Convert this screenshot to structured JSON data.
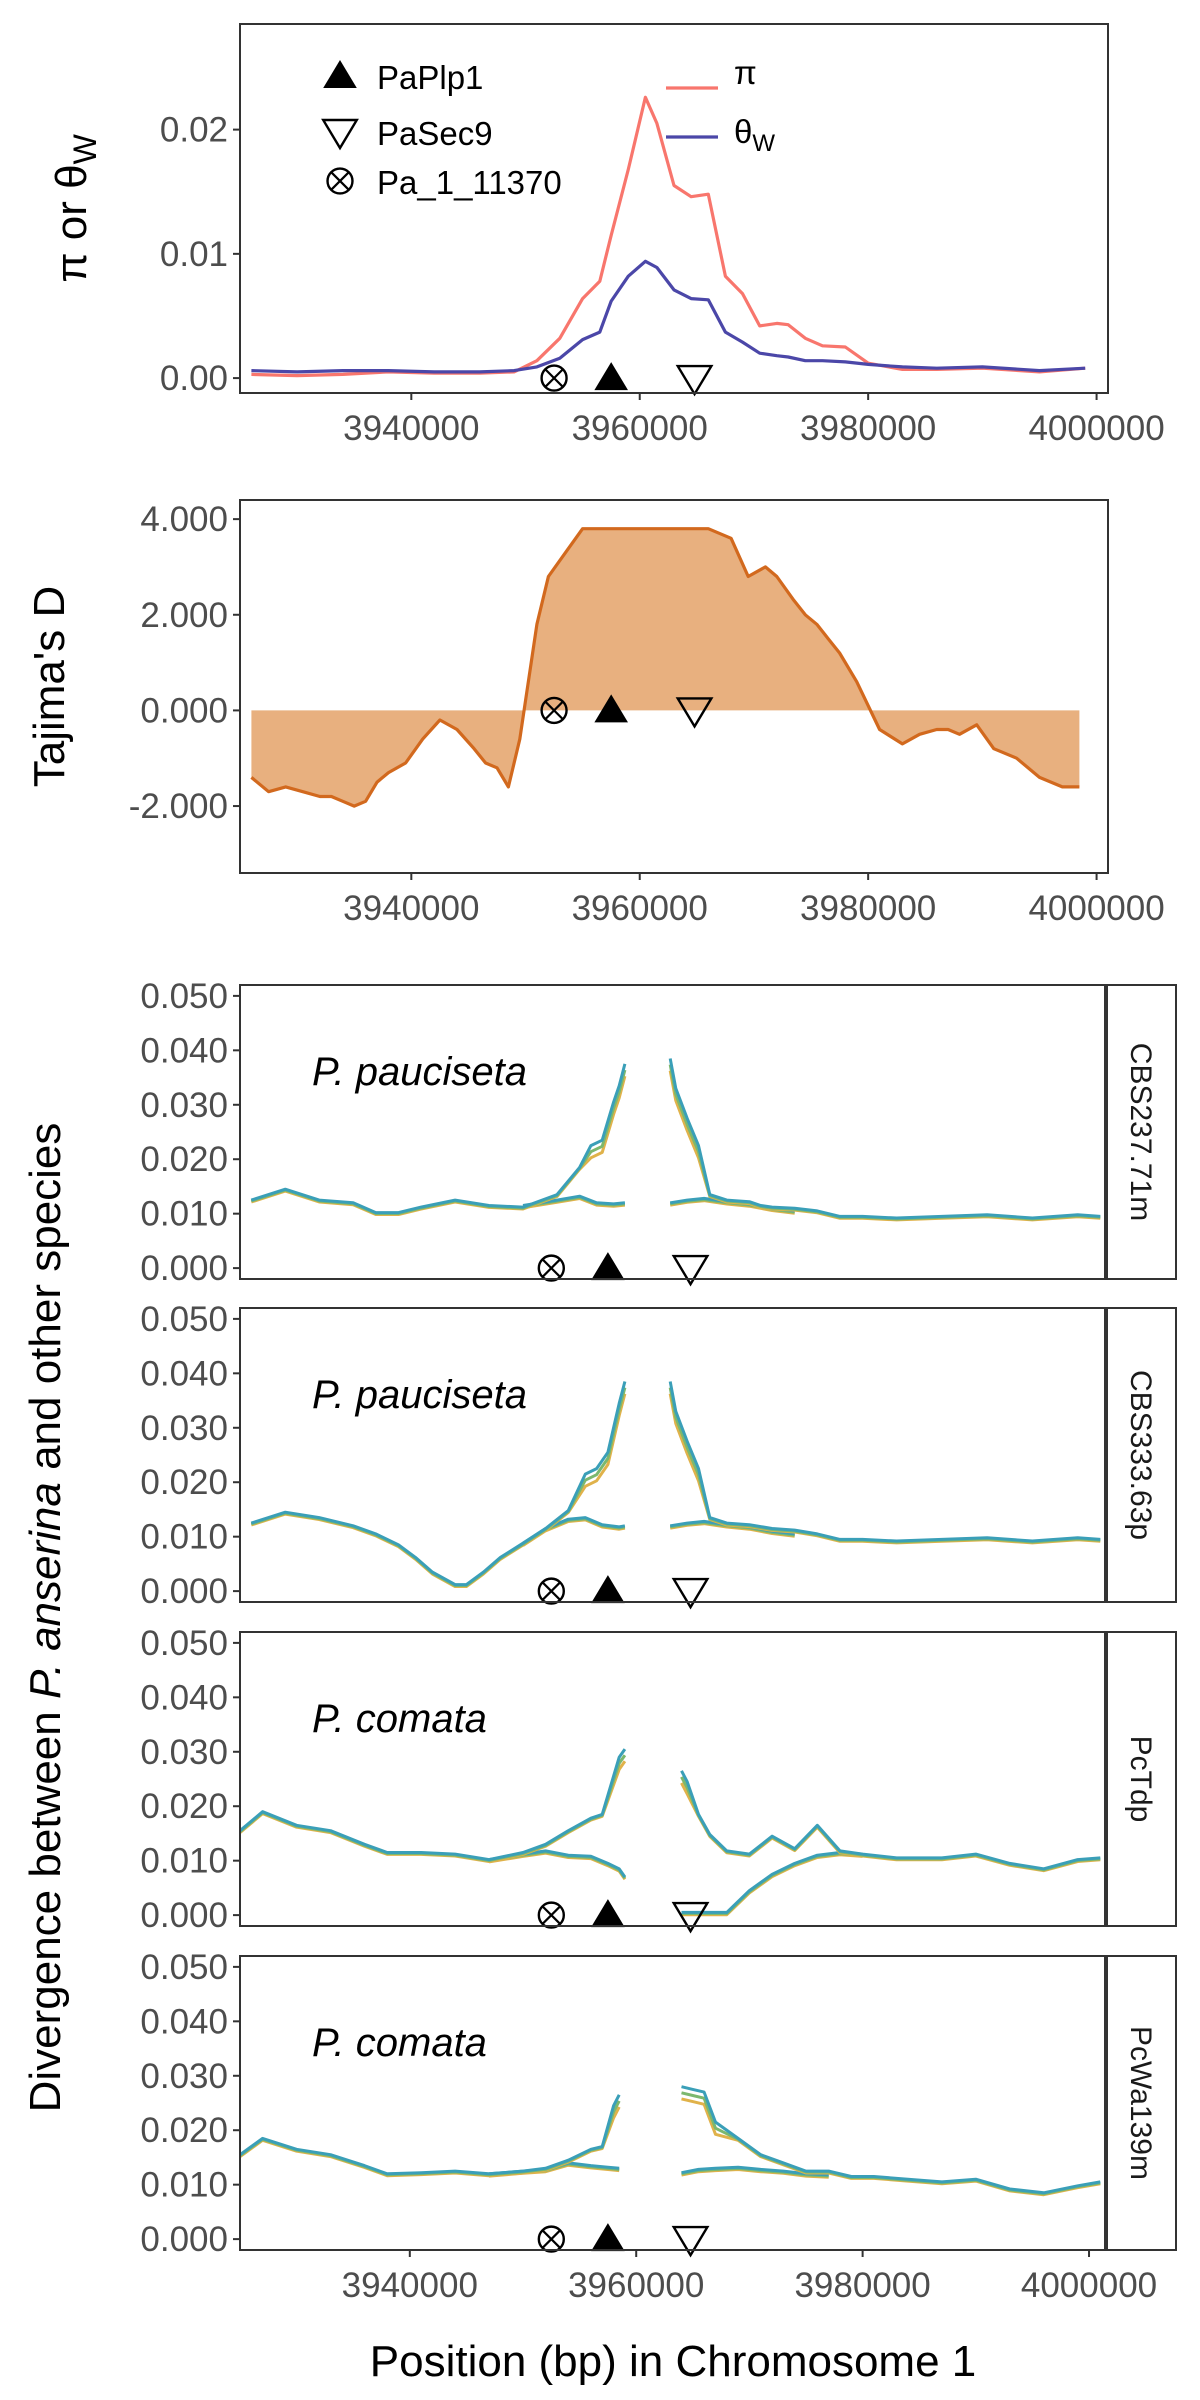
{
  "chart_data": [
    {
      "type": "line",
      "ylabel": "π or θ_W",
      "ylabel_parts": {
        "main": "π or θ",
        "sub": "W"
      },
      "ylim": [
        -0.0012,
        0.0285
      ],
      "yticks": [
        0.0,
        0.01,
        0.02
      ],
      "ytick_labels": [
        "0.00",
        "0.01",
        "0.02"
      ],
      "xlim": [
        3925000,
        4001000
      ],
      "xticks": [
        3940000,
        3960000,
        3980000,
        4000000
      ],
      "xtick_labels": [
        "3940000",
        "3960000",
        "3980000",
        "4000000"
      ],
      "legend": {
        "position": "top-left",
        "markers": [
          {
            "label": "PaPlp1",
            "symbol": "filled-triangle-up"
          },
          {
            "label": "PaSec9",
            "symbol": "open-triangle-down"
          },
          {
            "label": "Pa_1_11370",
            "symbol": "circle-cross"
          }
        ],
        "lines": [
          {
            "label": "π",
            "color": "#f8766d"
          },
          {
            "label": "θW",
            "label_main": "θ",
            "label_sub": "W",
            "color": "#4b47a8"
          }
        ]
      },
      "series": [
        {
          "label": "π",
          "color": "#f8766d",
          "x": [
            3926000,
            3930000,
            3934000,
            3938000,
            3942000,
            3946000,
            3949000,
            3951000,
            3953000,
            3955000,
            3956500,
            3957500,
            3959000,
            3960500,
            3961500,
            3963000,
            3964500,
            3966000,
            3967500,
            3969000,
            3970500,
            3972000,
            3973000,
            3974500,
            3976000,
            3978000,
            3980000,
            3983000,
            3986000,
            3990000,
            3995000,
            3999000
          ],
          "y": [
            0.0003,
            0.0002,
            0.0003,
            0.0005,
            0.0004,
            0.0004,
            0.0005,
            0.0014,
            0.0032,
            0.0064,
            0.0078,
            0.0115,
            0.0168,
            0.0226,
            0.0205,
            0.0155,
            0.0146,
            0.0148,
            0.0082,
            0.0068,
            0.0042,
            0.0044,
            0.0043,
            0.0032,
            0.0026,
            0.0025,
            0.0012,
            0.0007,
            0.0007,
            0.0008,
            0.0005,
            0.0008
          ]
        },
        {
          "label": "θW",
          "color": "#4b47a8",
          "x": [
            3926000,
            3930000,
            3934000,
            3938000,
            3942000,
            3946000,
            3949000,
            3951000,
            3953000,
            3955000,
            3956500,
            3957500,
            3959000,
            3960500,
            3961500,
            3963000,
            3964500,
            3966000,
            3967500,
            3969000,
            3970500,
            3972000,
            3973000,
            3974500,
            3976000,
            3978000,
            3980000,
            3983000,
            3986000,
            3990000,
            3995000,
            3999000
          ],
          "y": [
            0.0006,
            0.0005,
            0.0006,
            0.0006,
            0.0005,
            0.0005,
            0.0006,
            0.0009,
            0.0016,
            0.0031,
            0.0037,
            0.0062,
            0.0082,
            0.0094,
            0.0089,
            0.0071,
            0.0064,
            0.0063,
            0.0037,
            0.0029,
            0.002,
            0.0018,
            0.0017,
            0.0014,
            0.0014,
            0.0013,
            0.0011,
            0.0009,
            0.0008,
            0.0009,
            0.0006,
            0.0008
          ]
        }
      ],
      "gene_markers": [
        {
          "label": "Pa_1_11370",
          "x": 3952500,
          "symbol": "circle-cross"
        },
        {
          "label": "PaPlp1",
          "x": 3957500,
          "symbol": "filled-triangle-up"
        },
        {
          "label": "PaSec9",
          "x": 3964800,
          "symbol": "open-triangle-down"
        }
      ]
    },
    {
      "type": "area",
      "ylabel": "Tajima's D",
      "ylim": [
        -3.4,
        4.4
      ],
      "yticks": [
        -2.0,
        0.0,
        2.0,
        4.0
      ],
      "ytick_labels": [
        "-2.000",
        "0.000",
        "2.000",
        "4.000"
      ],
      "xlim": [
        3925000,
        4001000
      ],
      "xticks": [
        3940000,
        3960000,
        3980000,
        4000000
      ],
      "xtick_labels": [
        "3940000",
        "3960000",
        "3980000",
        "4000000"
      ],
      "fill_color": "#e8b07f",
      "line_color": "#d2691e",
      "series": [
        {
          "label": "Tajima's D",
          "x": [
            3926000,
            3927500,
            3929000,
            3930500,
            3932000,
            3933000,
            3934000,
            3935000,
            3936000,
            3937000,
            3938000,
            3939500,
            3941000,
            3942500,
            3944000,
            3945500,
            3946500,
            3947500,
            3948500,
            3949500,
            3950000,
            3950500,
            3951000,
            3952000,
            3953500,
            3955000,
            3956000,
            3966000,
            3968000,
            3969500,
            3971000,
            3972000,
            3973500,
            3974500,
            3975500,
            3976500,
            3977500,
            3979000,
            3981000,
            3983000,
            3984500,
            3986000,
            3987000,
            3988000,
            3989500,
            3991000,
            3993000,
            3995000,
            3997000,
            3998500
          ],
          "y": [
            -1.4,
            -1.7,
            -1.6,
            -1.7,
            -1.8,
            -1.8,
            -1.9,
            -2.0,
            -1.9,
            -1.5,
            -1.3,
            -1.1,
            -0.6,
            -0.2,
            -0.4,
            -0.8,
            -1.1,
            -1.2,
            -1.6,
            -0.6,
            0.2,
            1.0,
            1.8,
            2.8,
            3.3,
            3.8,
            3.8,
            3.8,
            3.6,
            2.8,
            3.0,
            2.8,
            2.3,
            2.0,
            1.8,
            1.5,
            1.2,
            0.6,
            -0.4,
            -0.7,
            -0.5,
            -0.4,
            -0.4,
            -0.5,
            -0.3,
            -0.8,
            -1.0,
            -1.4,
            -1.6,
            -1.6
          ]
        }
      ],
      "gene_markers": [
        {
          "label": "Pa_1_11370",
          "x": 3952500,
          "symbol": "circle-cross"
        },
        {
          "label": "PaPlp1",
          "x": 3957500,
          "symbol": "filled-triangle-up"
        },
        {
          "label": "PaSec9",
          "x": 3964800,
          "symbol": "open-triangle-down"
        }
      ]
    },
    {
      "type": "line",
      "ylabel_parts": {
        "before": "Divergence between ",
        "italic": "P. anserina",
        "after": " and other species"
      },
      "xlabel": "Position (bp) in Chromosome 1",
      "ylim": [
        -0.002,
        0.052
      ],
      "yticks": [
        0.0,
        0.01,
        0.02,
        0.03,
        0.04,
        0.05
      ],
      "ytick_labels": [
        "0.000",
        "0.010",
        "0.020",
        "0.030",
        "0.040",
        "0.050"
      ],
      "xlim": [
        3925000,
        4001500
      ],
      "xticks": [
        3940000,
        3960000,
        3980000,
        4000000
      ],
      "xtick_labels": [
        "3940000",
        "3960000",
        "3980000",
        "4000000"
      ],
      "series_colors": [
        "#e0b24a",
        "#7cb86e",
        "#3a9fb8"
      ],
      "facets": [
        {
          "strip": "CBS237.71m",
          "species": "P. pauciseta",
          "high": {
            "x": [
              3926000,
              3929000,
              3932000,
              3935000,
              3937000,
              3939000,
              3941000,
              3944000,
              3947000,
              3950000,
              3953000,
              3955000,
              3956000,
              3957000,
              3958000,
              3958500,
              3959000,
              3963000,
              3963500,
              3964500,
              3965500,
              3966500,
              3968000,
              3970000,
              3971000,
              3972000,
              3974000,
              3976000,
              3978000,
              3980000,
              3983000,
              3987000,
              3991000,
              3995000,
              3999000,
              4001000
            ],
            "y": [
              0.0125,
              0.0145,
              0.0125,
              0.012,
              0.0102,
              0.0102,
              0.0112,
              0.0125,
              0.0115,
              0.0112,
              0.0135,
              0.0185,
              0.0225,
              0.0235,
              0.0305,
              0.0335,
              0.0375,
              0.0385,
              0.033,
              0.0275,
              0.0225,
              0.0135,
              0.0125,
              0.0122,
              0.0115,
              0.0112,
              0.011,
              0.0105,
              0.0095,
              0.0095,
              0.0092,
              0.0095,
              0.0098,
              0.0092,
              0.0098,
              0.0095
            ]
          },
          "low": {
            "x": [
              3950000,
              3953000,
              3955000,
              3956500,
              3958000,
              3959000,
              3963000,
              3964500,
              3966000,
              3968000,
              3970000,
              3972000,
              3974000
            ],
            "y": [
              0.0115,
              0.0125,
              0.0132,
              0.012,
              0.0118,
              0.012,
              0.012,
              0.0125,
              0.0128,
              0.0122,
              0.0118,
              0.011,
              0.0105
            ]
          },
          "gap": [
            3959000,
            3963000
          ]
        },
        {
          "strip": "CBS333.63p",
          "species": "P. pauciseta",
          "high": {
            "x": [
              3926000,
              3929000,
              3932000,
              3935000,
              3937000,
              3939000,
              3940500,
              3942000,
              3944000,
              3945000,
              3946500,
              3948000,
              3950000,
              3952000,
              3954000,
              3955500,
              3956500,
              3957500,
              3958500,
              3959000,
              3963000,
              3963500,
              3964500,
              3965500,
              3966500,
              3968000,
              3970000,
              3972000,
              3974000,
              3976000,
              3978000,
              3980000,
              3983000,
              3987000,
              3991000,
              3995000,
              3999000,
              4001000
            ],
            "y": [
              0.0125,
              0.0145,
              0.0135,
              0.012,
              0.0105,
              0.0085,
              0.0062,
              0.0035,
              0.0012,
              0.0012,
              0.0035,
              0.0062,
              0.0088,
              0.0115,
              0.0148,
              0.0215,
              0.0225,
              0.0255,
              0.0345,
              0.0385,
              0.0385,
              0.033,
              0.0275,
              0.0225,
              0.0135,
              0.0125,
              0.0122,
              0.0115,
              0.0112,
              0.0105,
              0.0095,
              0.0095,
              0.0092,
              0.0095,
              0.0098,
              0.0092,
              0.0098,
              0.0095
            ]
          },
          "low": {
            "x": [
              3950000,
              3952000,
              3954000,
              3955500,
              3957000,
              3958500,
              3959000,
              3963000,
              3964500,
              3966000,
              3968000,
              3970000,
              3972000,
              3974000
            ],
            "y": [
              0.0088,
              0.0115,
              0.0132,
              0.0135,
              0.0122,
              0.0118,
              0.012,
              0.012,
              0.0125,
              0.0128,
              0.0122,
              0.0118,
              0.011,
              0.0105
            ]
          },
          "gap": [
            3959000,
            3963000
          ]
        },
        {
          "strip": "PcTdp",
          "species": "P. comata",
          "high": {
            "x": [
              3925000,
              3927000,
              3930000,
              3933000,
              3936000,
              3938000,
              3941000,
              3944000,
              3947000,
              3950000,
              3952000,
              3954000,
              3956000,
              3957000,
              3958500,
              3959000,
              3964000,
              3964500,
              3965500,
              3966500,
              3968000,
              3970000,
              3972000,
              3974000,
              3976000,
              3978000,
              3980000,
              3983000,
              3987000,
              3990000,
              3993000,
              3996000,
              3999000,
              4001000
            ],
            "y": [
              0.0155,
              0.019,
              0.0165,
              0.0155,
              0.013,
              0.0115,
              0.0115,
              0.0112,
              0.0102,
              0.0115,
              0.013,
              0.0155,
              0.0178,
              0.0185,
              0.029,
              0.0305,
              0.0265,
              0.0245,
              0.0185,
              0.0148,
              0.0118,
              0.0112,
              0.0145,
              0.0122,
              0.0165,
              0.0118,
              0.0112,
              0.0105,
              0.0105,
              0.0112,
              0.0095,
              0.0085,
              0.0102,
              0.0105
            ]
          },
          "low": {
            "x": [
              3947000,
              3950000,
              3952000,
              3954000,
              3956000,
              3957500,
              3958500,
              3959000,
              3964000,
              3965000,
              3966500,
              3968000,
              3970000,
              3972000,
              3974000,
              3976000,
              3978000,
              3980000
            ],
            "y": [
              0.0102,
              0.0112,
              0.0118,
              0.011,
              0.0108,
              0.0095,
              0.0085,
              0.007,
              0.0005,
              0.0005,
              0.0005,
              0.0005,
              0.0045,
              0.0075,
              0.0095,
              0.011,
              0.0115,
              0.0112
            ]
          },
          "gap": [
            3959000,
            3964000
          ]
        },
        {
          "strip": "PcWa139m",
          "species": "P. comata",
          "high": {
            "x": [
              3925000,
              3927000,
              3930000,
              3933000,
              3936000,
              3938000,
              3941000,
              3944000,
              3947000,
              3950000,
              3952000,
              3954000,
              3956000,
              3957000,
              3958000,
              3958500,
              3964000,
              3965000,
              3966000,
              3967000,
              3969000,
              3971000,
              3973000,
              3975000,
              3977000,
              3979000,
              3981000,
              3984000,
              3987000,
              3990000,
              3993000,
              3996000,
              3999000,
              4001000
            ],
            "y": [
              0.0155,
              0.0185,
              0.0165,
              0.0155,
              0.0135,
              0.012,
              0.0122,
              0.0125,
              0.012,
              0.0125,
              0.013,
              0.0145,
              0.0165,
              0.017,
              0.0245,
              0.0265,
              0.028,
              0.0275,
              0.027,
              0.0215,
              0.0185,
              0.0155,
              0.014,
              0.0125,
              0.0125,
              0.0115,
              0.0115,
              0.011,
              0.0105,
              0.011,
              0.0092,
              0.0085,
              0.0098,
              0.0105
            ]
          },
          "low": {
            "x": [
              3947000,
              3950000,
              3952000,
              3954000,
              3956000,
              3957500,
              3958500,
              3964000,
              3965500,
              3967000,
              3969000,
              3971000,
              3973000,
              3975000,
              3977000
            ],
            "y": [
              0.012,
              0.0125,
              0.0128,
              0.014,
              0.0135,
              0.0132,
              0.013,
              0.0122,
              0.0128,
              0.013,
              0.0132,
              0.0128,
              0.0125,
              0.012,
              0.0118
            ]
          },
          "gap": [
            3958500,
            3964000
          ]
        }
      ],
      "gene_markers": [
        {
          "label": "Pa_1_11370",
          "x": 3952500,
          "symbol": "circle-cross"
        },
        {
          "label": "PaPlp1",
          "x": 3957500,
          "symbol": "filled-triangle-up"
        },
        {
          "label": "PaSec9",
          "x": 3964800,
          "symbol": "open-triangle-down"
        }
      ]
    }
  ]
}
